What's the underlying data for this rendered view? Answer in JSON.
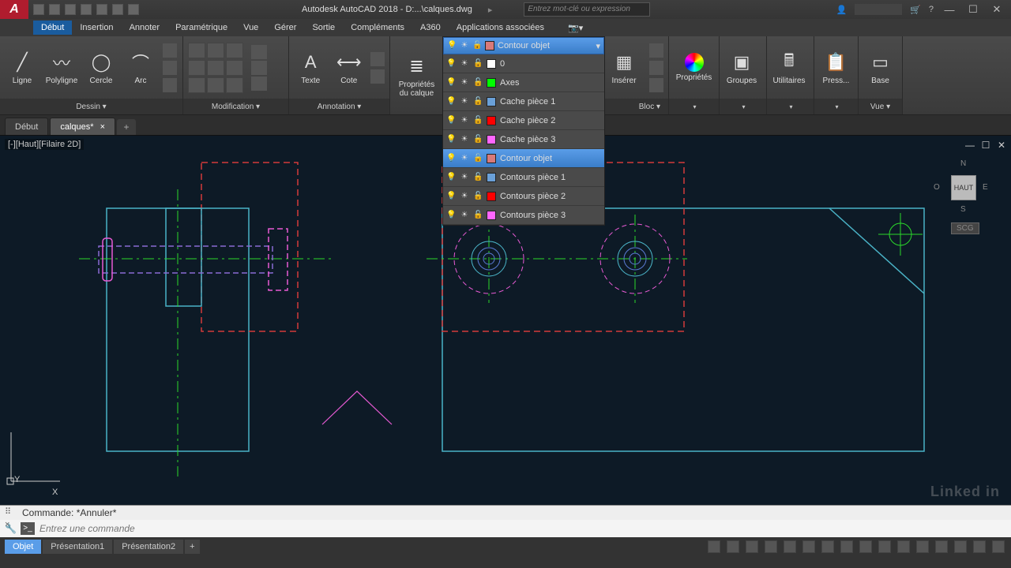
{
  "title": {
    "app": "Autodesk AutoCAD 2018 -",
    "file": "D:...\\calques.dwg",
    "search_ph": "Entrez mot-clé ou expression"
  },
  "menu": {
    "items": [
      "Début",
      "Insertion",
      "Annoter",
      "Paramétrique",
      "Vue",
      "Gérer",
      "Sortie",
      "Compléments",
      "A360",
      "Applications associées"
    ],
    "active": 0
  },
  "ribbon": {
    "dessin": {
      "label": "Dessin ▾",
      "ligne": "Ligne",
      "polyligne": "Polyligne",
      "cercle": "Cercle",
      "arc": "Arc"
    },
    "modif": {
      "label": "Modification ▾"
    },
    "annot": {
      "label": "Annotation ▾",
      "texte": "Texte",
      "cote": "Cote"
    },
    "calques": {
      "label": "Propriétés\ndu calque"
    },
    "bloc": {
      "label": "Bloc ▾",
      "inserer": "Insérer"
    },
    "prop": {
      "label": "Propriétés"
    },
    "groupes": {
      "label": "Groupes"
    },
    "util": {
      "label": "Utilitaires"
    },
    "press": {
      "label": "Press..."
    },
    "vue": {
      "label": "Vue ▾"
    },
    "base": {
      "label": "Base"
    }
  },
  "doctabs": {
    "t0": "Début",
    "t1": "calques*"
  },
  "viewport": {
    "label": "[-][Haut][Filaire 2D]",
    "y": "Y",
    "x": "X"
  },
  "navcube": {
    "top": "HAUT",
    "n": "N",
    "s": "S",
    "e": "E",
    "o": "O",
    "scg": "SCG"
  },
  "layers_head": "Contour objet",
  "layers": [
    {
      "name": "0",
      "color": "#ffffff"
    },
    {
      "name": "Axes",
      "color": "#00ff00"
    },
    {
      "name": "Cache pièce 1",
      "color": "#6aa0d8"
    },
    {
      "name": "Cache pièce 2",
      "color": "#ff0000"
    },
    {
      "name": "Cache pièce 3",
      "color": "#ff66ff"
    },
    {
      "name": "Contour objet",
      "color": "#d87a7a",
      "sel": true
    },
    {
      "name": "Contours pièce  1",
      "color": "#6aa0d8"
    },
    {
      "name": "Contours pièce 2",
      "color": "#ff0000"
    },
    {
      "name": "Contours pièce 3",
      "color": "#ff66ff"
    }
  ],
  "cmd": {
    "hist": "Commande: *Annuler*",
    "ph": "Entrez une commande"
  },
  "layout": {
    "t0": "Objet",
    "t1": "Présentation1",
    "t2": "Présentation2"
  },
  "colors": {
    "cyan": "#4ab3c7",
    "red": "#d43a3a",
    "green": "#2bd82b",
    "magenta": "#e85ad4",
    "purple": "#8a6ad4",
    "blue": "#5a7ad4"
  },
  "watermark": "Linked in"
}
